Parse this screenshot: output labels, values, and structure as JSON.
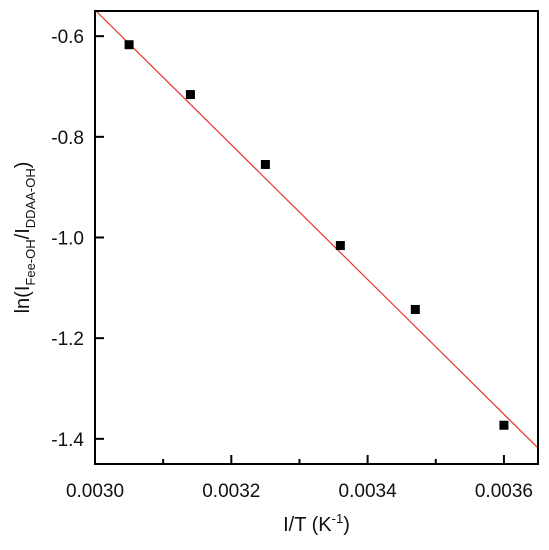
{
  "chart_data": {
    "type": "scatter",
    "title": "",
    "xlabel": "I/T (K",
    "xlabel_sup": "-1",
    "xlabel_end": ")",
    "ylabel_parts": [
      {
        "text": "ln(I",
        "kind": "normal"
      },
      {
        "text": "Fee-OH",
        "kind": "sub"
      },
      {
        "text": "/I",
        "kind": "normal"
      },
      {
        "text": "DDAA-OH",
        "kind": "sub"
      },
      {
        "text": ")",
        "kind": "normal"
      }
    ],
    "xlim": [
      0.003,
      0.00365
    ],
    "ylim": [
      -1.45,
      -0.55
    ],
    "xticks": [
      0.003,
      0.0032,
      0.0034,
      0.0036
    ],
    "xtick_labels": [
      "0.0030",
      "0.0032",
      "0.0034",
      "0.0036"
    ],
    "yticks": [
      -0.6,
      -0.8,
      -1.0,
      -1.2,
      -1.4
    ],
    "ytick_labels": [
      "-0.6",
      "-0.8",
      "-1.0",
      "-1.2",
      "-1.4"
    ],
    "grid": false,
    "series": [
      {
        "kind": "points",
        "marker": "square",
        "color": "#000000",
        "x": [
          0.00305,
          0.00314,
          0.00325,
          0.00336,
          0.00347,
          0.0036
        ],
        "y": [
          -0.617,
          -0.716,
          -0.855,
          -1.016,
          -1.143,
          -1.373
        ]
      },
      {
        "kind": "fit-line",
        "color": "#e8332a",
        "x": [
          0.003,
          0.00365
        ],
        "y": [
          -0.548,
          -1.418
        ]
      }
    ]
  }
}
